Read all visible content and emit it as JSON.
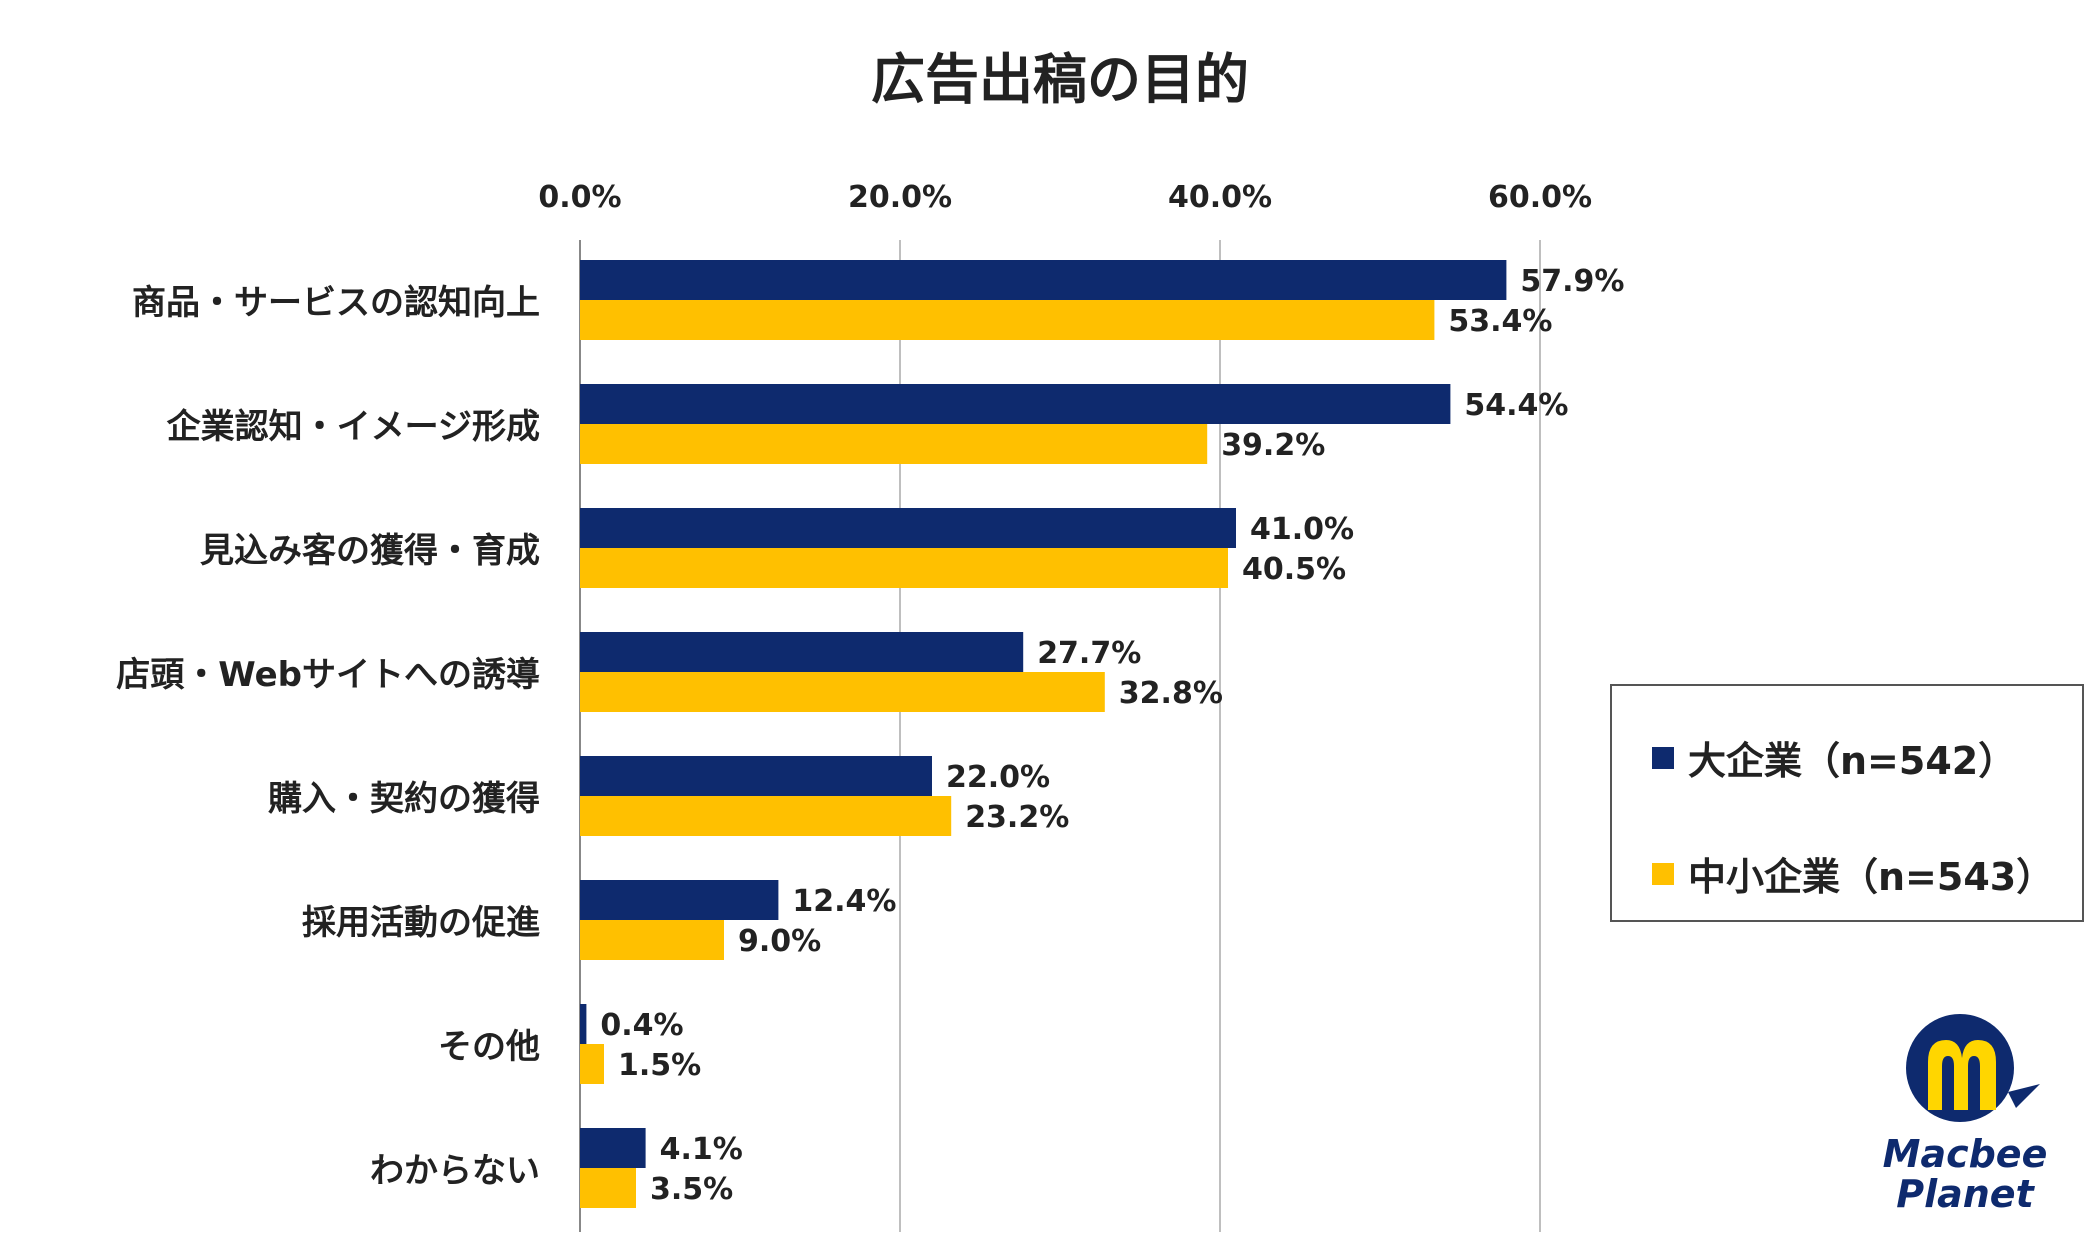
{
  "chart_data": {
    "type": "bar",
    "orientation": "horizontal",
    "title": "広告出稿の目的",
    "categories": [
      "商品・サービスの認知向上",
      "企業認知・イメージ形成",
      "見込み客の獲得・育成",
      "店頭・Webサイトへの誘導",
      "購入・契約の獲得",
      "採用活動の促進",
      "その他",
      "わからない"
    ],
    "series": [
      {
        "name": "大企業（n=542）",
        "values": [
          57.9,
          54.4,
          41.0,
          27.7,
          22.0,
          12.4,
          0.4,
          4.1
        ],
        "labels": [
          "57.9%",
          "54.4%",
          "41.0%",
          "27.7%",
          "22.0%",
          "12.4%",
          "0.4%",
          "4.1%"
        ]
      },
      {
        "name": "中小企業（n=543）",
        "values": [
          53.4,
          39.2,
          40.5,
          32.8,
          23.2,
          9.0,
          1.5,
          3.5
        ],
        "labels": [
          "53.4%",
          "39.2%",
          "40.5%",
          "32.8%",
          "23.2%",
          "9.0%",
          "1.5%",
          "3.5%"
        ]
      }
    ],
    "x_ticks": [
      "0.0%",
      "20.0%",
      "40.0%",
      "60.0%"
    ],
    "xlim": [
      0,
      60
    ],
    "axis_position": "top",
    "grid": true,
    "legend_position": "right",
    "colors": {
      "large": "#0e2a6e",
      "small": "#ffc000",
      "grid": "#bfbfbf"
    }
  },
  "logo": {
    "name": "macbee-planet-logo",
    "line1": "Macbee",
    "line2": "Planet",
    "colors": {
      "circle": "#0e2a6e",
      "m": "#ffd600"
    }
  }
}
